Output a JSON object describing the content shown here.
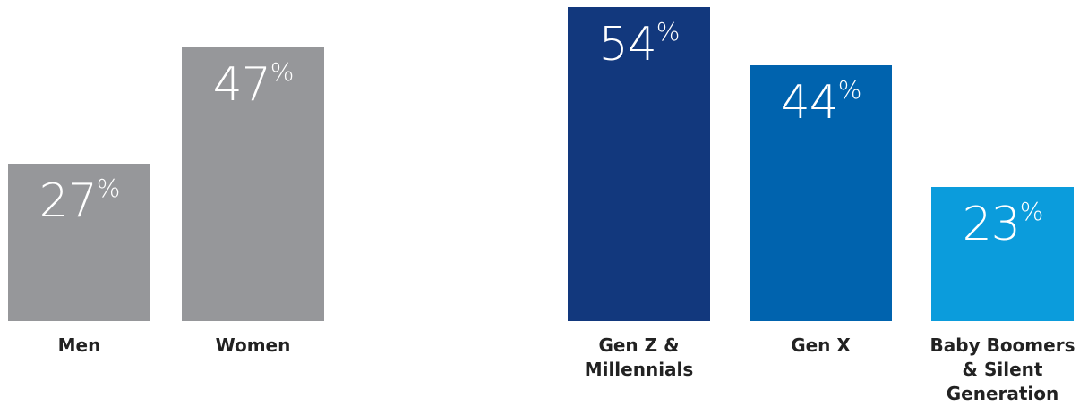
{
  "chart_data": [
    {
      "type": "bar",
      "categories": [
        "Men",
        "Women"
      ],
      "values": [
        27,
        47
      ],
      "value_suffix": "%",
      "ylim": [
        0,
        54
      ],
      "colors": [
        "#96979a",
        "#96979a"
      ],
      "title": "",
      "xlabel": "",
      "ylabel": "",
      "grid": false
    },
    {
      "type": "bar",
      "categories": [
        "Gen Z & Millennials",
        "Gen X",
        "Baby Boomers & Silent Generation"
      ],
      "category_lines": [
        [
          "Gen Z &",
          "Millennials"
        ],
        [
          "Gen X"
        ],
        [
          "Baby Boomers",
          "& Silent",
          "Generation"
        ]
      ],
      "values": [
        54,
        44,
        23
      ],
      "value_suffix": "%",
      "ylim": [
        0,
        54
      ],
      "colors": [
        "#12387d",
        "#0063ae",
        "#0b9cdc"
      ],
      "title": "",
      "xlabel": "",
      "ylabel": "",
      "grid": false
    }
  ]
}
